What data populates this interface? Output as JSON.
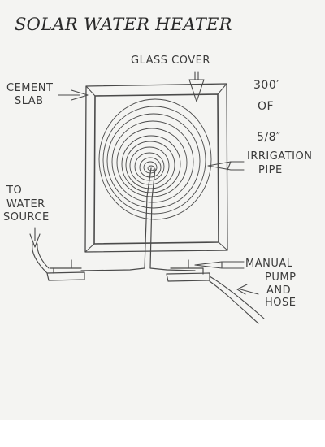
{
  "title": "SOLAR WATER HEATER",
  "labels": {
    "glass_cover": "GLASS COVER",
    "cement_slab_1": "CEMENT",
    "cement_slab_2": "SLAB",
    "pipe_length_1": "300′",
    "pipe_length_2": "OF",
    "pipe_size": "5/8″",
    "pipe_type_1": "IRRIGATION",
    "pipe_type_2": "PIPE",
    "water_source_1": "TO",
    "water_source_2": "WATER",
    "water_source_3": "SOURCE",
    "pump_1": "MANUAL",
    "pump_2": "PUMP",
    "pump_3": "AND",
    "pump_4": "HOSE"
  },
  "colors": {
    "paper": "#f4f4f2",
    "pencil": "#3a3a3a"
  }
}
